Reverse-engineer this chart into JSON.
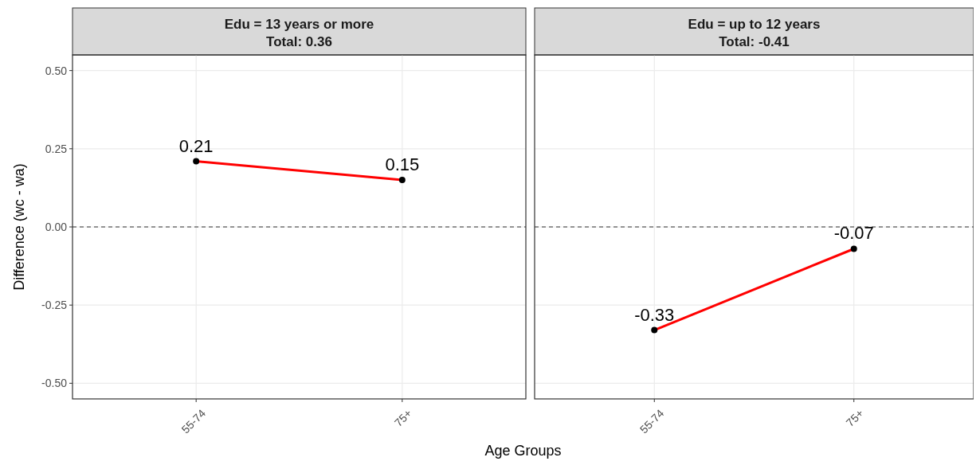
{
  "chart_data": [
    {
      "type": "line",
      "title": "Edu = 13 years or more",
      "subtitle": "Total: 0.36",
      "ylabel": "Difference (wc - wa)",
      "xlabel": "Age Groups",
      "categories": [
        "55-74",
        "75+"
      ],
      "series": [
        {
          "color": "#ff0000",
          "values": [
            0.21,
            0.15
          ]
        }
      ],
      "ylim": [
        -0.55,
        0.55
      ],
      "yticks": [
        {
          "value": 0.5,
          "label": "0.50"
        },
        0.25,
        {
          "value": 0,
          "label": "0.00"
        },
        -0.25,
        {
          "value": -0.5,
          "label": "-0.50"
        }
      ],
      "grid": true,
      "marker": "circle",
      "data_labels": true,
      "ref_lines": [
        {
          "axis": "y",
          "value": 0,
          "line_style": "dashed",
          "color": "#333333"
        }
      ]
    },
    {
      "type": "line",
      "title": "Edu = up to 12 years",
      "subtitle": "Total: -0.41",
      "categories": [
        "55-74",
        "75+"
      ],
      "series": [
        {
          "color": "#ff0000",
          "values": [
            -0.33,
            -0.07
          ]
        }
      ],
      "ylim": [
        -0.55,
        0.55
      ],
      "yticks": [
        0.5,
        0.25,
        0,
        -0.25,
        -0.5
      ],
      "tick_labels": "x",
      "grid": true,
      "marker": "circle",
      "data_labels": true,
      "ref_lines": [
        {
          "axis": "y",
          "value": 0,
          "line_style": "dashed",
          "color": "#333333"
        }
      ]
    }
  ]
}
